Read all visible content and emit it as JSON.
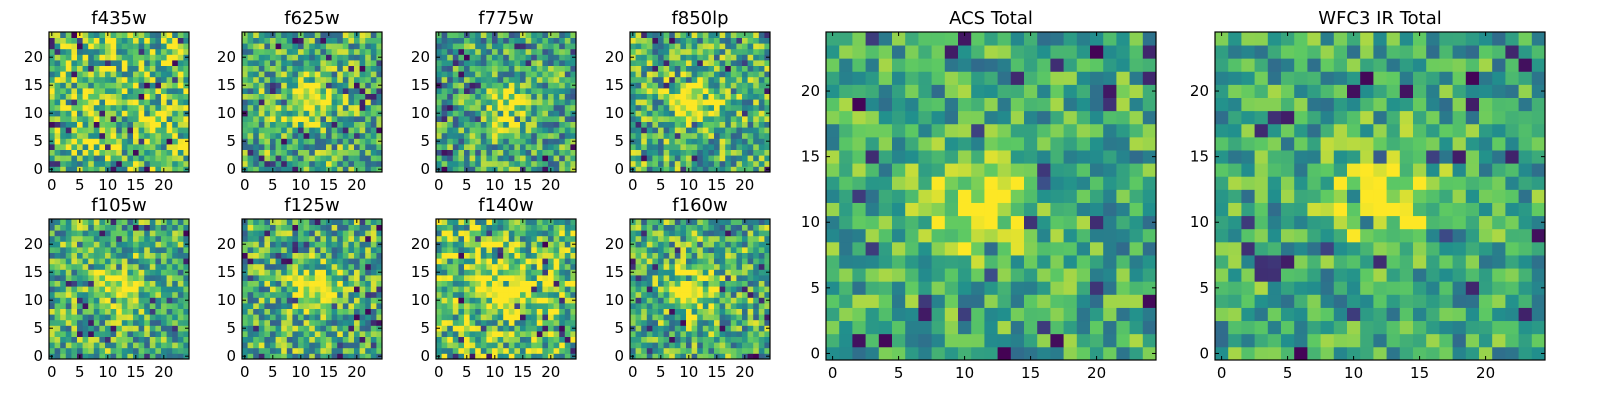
{
  "figure": {
    "colormap": [
      "#440154",
      "#3b528b",
      "#21908d",
      "#5dc963",
      "#fde725"
    ],
    "background": "#ffffff"
  },
  "chart_data": [
    {
      "type": "heatmap",
      "title": "f435w",
      "grid": [
        25,
        25
      ],
      "xlim": [
        0,
        24
      ],
      "ylim": [
        0,
        24
      ],
      "xticks": [
        0,
        5,
        10,
        15,
        20
      ],
      "yticks": [
        0,
        5,
        10,
        15,
        20
      ],
      "source_peak": null,
      "seed": 11,
      "noise": 1.0,
      "floor": 0.35
    },
    {
      "type": "heatmap",
      "title": "f625w",
      "grid": [
        25,
        25
      ],
      "xlim": [
        0,
        24
      ],
      "ylim": [
        0,
        24
      ],
      "xticks": [
        0,
        5,
        10,
        15,
        20
      ],
      "yticks": [
        0,
        5,
        10,
        15,
        20
      ],
      "source_peak": [
        11,
        12
      ],
      "seed": 23,
      "noise": 0.9,
      "floor": 0.3
    },
    {
      "type": "heatmap",
      "title": "f775w",
      "grid": [
        25,
        25
      ],
      "xlim": [
        0,
        24
      ],
      "ylim": [
        0,
        24
      ],
      "xticks": [
        0,
        5,
        10,
        15,
        20
      ],
      "yticks": [
        0,
        5,
        10,
        15,
        20
      ],
      "source_peak": [
        12,
        11
      ],
      "seed": 37,
      "noise": 0.9,
      "floor": 0.25
    },
    {
      "type": "heatmap",
      "title": "f850lp",
      "grid": [
        25,
        25
      ],
      "xlim": [
        0,
        24
      ],
      "ylim": [
        0,
        24
      ],
      "xticks": [
        0,
        5,
        10,
        15,
        20
      ],
      "yticks": [
        0,
        5,
        10,
        15,
        20
      ],
      "source_peak": [
        11,
        12
      ],
      "seed": 41,
      "noise": 0.9,
      "floor": 0.3
    },
    {
      "type": "heatmap",
      "title": "f105w",
      "grid": [
        25,
        25
      ],
      "xlim": [
        0,
        24
      ],
      "ylim": [
        0,
        24
      ],
      "xticks": [
        0,
        5,
        10,
        15,
        20
      ],
      "yticks": [
        0,
        5,
        10,
        15,
        20
      ],
      "source_peak": [
        12,
        12
      ],
      "seed": 53,
      "noise": 0.9,
      "floor": 0.3
    },
    {
      "type": "heatmap",
      "title": "f125w",
      "grid": [
        25,
        25
      ],
      "xlim": [
        0,
        24
      ],
      "ylim": [
        0,
        24
      ],
      "xticks": [
        0,
        5,
        10,
        15,
        20
      ],
      "yticks": [
        0,
        5,
        10,
        15,
        20
      ],
      "source_peak": [
        12,
        12
      ],
      "seed": 67,
      "noise": 0.9,
      "floor": 0.3
    },
    {
      "type": "heatmap",
      "title": "f140w",
      "grid": [
        25,
        25
      ],
      "xlim": [
        0,
        24
      ],
      "ylim": [
        0,
        24
      ],
      "xticks": [
        0,
        5,
        10,
        15,
        20
      ],
      "yticks": [
        0,
        5,
        10,
        15,
        20
      ],
      "source_peak": [
        12,
        12
      ],
      "seed": 79,
      "noise": 1.0,
      "floor": 0.35
    },
    {
      "type": "heatmap",
      "title": "f160w",
      "grid": [
        25,
        25
      ],
      "xlim": [
        0,
        24
      ],
      "ylim": [
        0,
        24
      ],
      "xticks": [
        0,
        5,
        10,
        15,
        20
      ],
      "yticks": [
        0,
        5,
        10,
        15,
        20
      ],
      "source_peak": [
        11,
        12
      ],
      "seed": 83,
      "noise": 0.9,
      "floor": 0.3
    },
    {
      "type": "heatmap",
      "title": "ACS Total",
      "grid": [
        25,
        25
      ],
      "xlim": [
        0,
        24
      ],
      "ylim": [
        0,
        24
      ],
      "xticks": [
        0,
        5,
        10,
        15,
        20
      ],
      "yticks": [
        0,
        5,
        10,
        15,
        20
      ],
      "source_peak": [
        11,
        11
      ],
      "seed": 97,
      "noise": 0.7,
      "floor": 0.35
    },
    {
      "type": "heatmap",
      "title": "WFC3 IR Total",
      "grid": [
        25,
        25
      ],
      "xlim": [
        0,
        24
      ],
      "ylim": [
        0,
        24
      ],
      "xticks": [
        0,
        5,
        10,
        15,
        20
      ],
      "yticks": [
        0,
        5,
        10,
        15,
        20
      ],
      "source_peak": [
        12,
        12
      ],
      "seed": 101,
      "noise": 0.7,
      "floor": 0.35
    }
  ]
}
